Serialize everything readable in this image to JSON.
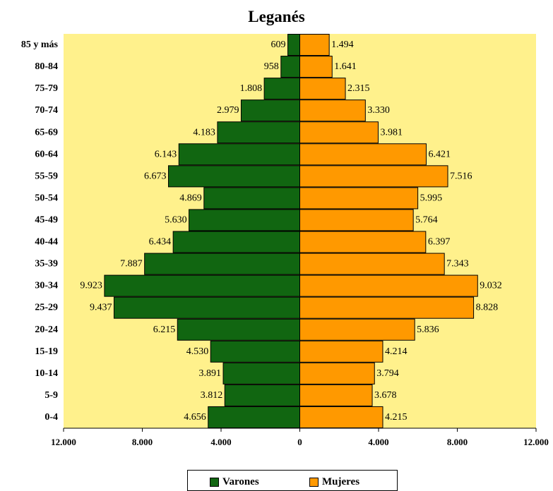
{
  "chart_data": {
    "type": "bar",
    "orientation": "horizontal",
    "title": "Leganés",
    "categories": [
      "85 y más",
      "80-84",
      "75-79",
      "70-74",
      "65-69",
      "60-64",
      "55-59",
      "50-54",
      "45-49",
      "40-44",
      "35-39",
      "30-34",
      "25-29",
      "20-24",
      "15-19",
      "10-14",
      "5-9",
      "0-4"
    ],
    "series": [
      {
        "name": "Varones",
        "color": "#116611",
        "values": [
          609,
          958,
          1808,
          2979,
          4183,
          6143,
          6673,
          4869,
          5630,
          6434,
          7887,
          9923,
          9437,
          6215,
          4530,
          3891,
          3812,
          4656
        ],
        "labels": [
          "609",
          "958",
          "1.808",
          "2.979",
          "4.183",
          "6.143",
          "6.673",
          "4.869",
          "5.630",
          "6.434",
          "7.887",
          "9.923",
          "9.437",
          "6.215",
          "4.530",
          "3.891",
          "3.812",
          "4.656"
        ]
      },
      {
        "name": "Mujeres",
        "color": "#FF9900",
        "values": [
          1494,
          1641,
          2315,
          3330,
          3981,
          6421,
          7516,
          5995,
          5764,
          6397,
          7343,
          9032,
          8828,
          5836,
          4214,
          3794,
          3678,
          4215
        ],
        "labels": [
          "1.494",
          "1.641",
          "2.315",
          "3.330",
          "3.981",
          "6.421",
          "7.516",
          "5.995",
          "5.764",
          "6.397",
          "7.343",
          "9.032",
          "8.828",
          "5.836",
          "4.214",
          "3.794",
          "3.678",
          "4.215"
        ]
      }
    ],
    "xlim": [
      -12000,
      12000
    ],
    "x_ticks": [
      -12000,
      -8000,
      -4000,
      0,
      4000,
      8000,
      12000
    ],
    "x_tick_labels": [
      "12.000",
      "8.000",
      "4.000",
      "0",
      "4.000",
      "8.000",
      "12.000"
    ],
    "plot_background": "#FFF18C",
    "grid": false,
    "legend_position": "bottom"
  }
}
